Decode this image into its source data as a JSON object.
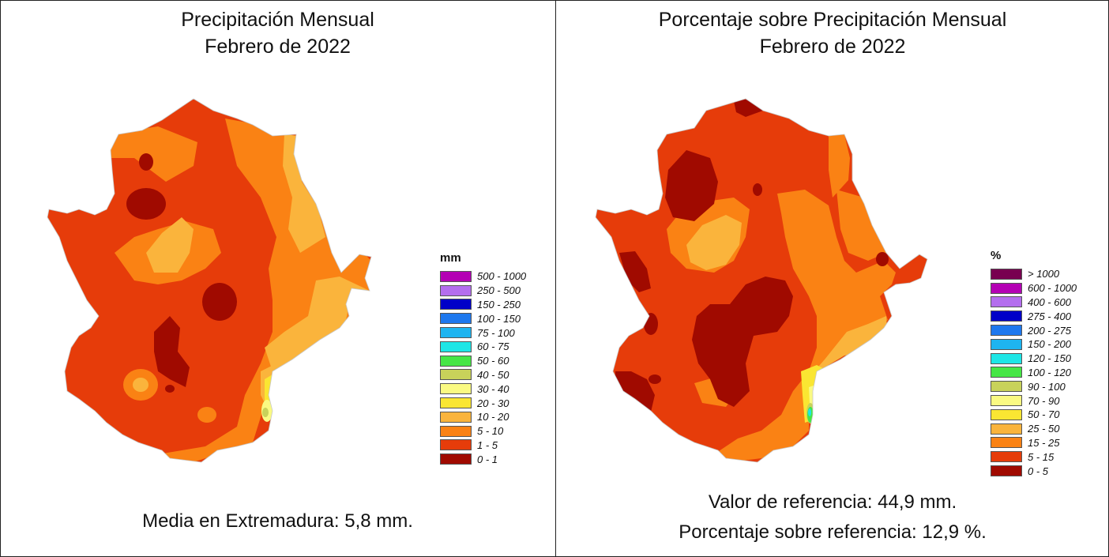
{
  "left": {
    "title_line1": "Precipitación Mensual",
    "title_line2": "Febrero de 2022",
    "legend_unit": "mm",
    "legend": [
      {
        "label": "500 - 1000",
        "color": "#b400b4"
      },
      {
        "label": "250 - 500",
        "color": "#b46eee"
      },
      {
        "label": "150 - 250",
        "color": "#0000c8"
      },
      {
        "label": "100 - 150",
        "color": "#1e78ee"
      },
      {
        "label": "75 - 100",
        "color": "#1eb4f0"
      },
      {
        "label": "60 - 75",
        "color": "#1ee6e6"
      },
      {
        "label": "50 - 60",
        "color": "#46e646"
      },
      {
        "label": "40 - 50",
        "color": "#c8d25a"
      },
      {
        "label": "30 - 40",
        "color": "#fafa82"
      },
      {
        "label": "20 - 30",
        "color": "#fae632"
      },
      {
        "label": "10 - 20",
        "color": "#fab43c"
      },
      {
        "label": "5 - 10",
        "color": "#fa8214"
      },
      {
        "label": "1 - 5",
        "color": "#e63c0a"
      },
      {
        "label": "0 - 1",
        "color": "#a00a00"
      }
    ],
    "stat": "Media en Extremadura: 5,8 mm."
  },
  "right": {
    "title_line1": "Porcentaje sobre Precipitación Mensual",
    "title_line2": "Febrero de 2022",
    "legend_unit": "%",
    "legend": [
      {
        "label": "> 1000",
        "color": "#780050"
      },
      {
        "label": "600 - 1000",
        "color": "#b400b4"
      },
      {
        "label": "400 - 600",
        "color": "#b46eee"
      },
      {
        "label": "275 - 400",
        "color": "#0000c8"
      },
      {
        "label": "200 - 275",
        "color": "#1e78ee"
      },
      {
        "label": "150 - 200",
        "color": "#1eb4f0"
      },
      {
        "label": "120 - 150",
        "color": "#1ee6e6"
      },
      {
        "label": "100 - 120",
        "color": "#46e646"
      },
      {
        "label": "90 - 100",
        "color": "#c8d25a"
      },
      {
        "label": "70 - 90",
        "color": "#fafa82"
      },
      {
        "label": "50 - 70",
        "color": "#fae632"
      },
      {
        "label": "25 - 50",
        "color": "#fab43c"
      },
      {
        "label": "15 - 25",
        "color": "#fa8214"
      },
      {
        "label": "5 - 15",
        "color": "#e63c0a"
      },
      {
        "label": "0 - 5",
        "color": "#a00a00"
      }
    ],
    "stat1": "Valor de referencia: 44,9 mm.",
    "stat2": "Porcentaje sobre referencia: 12,9 %."
  }
}
